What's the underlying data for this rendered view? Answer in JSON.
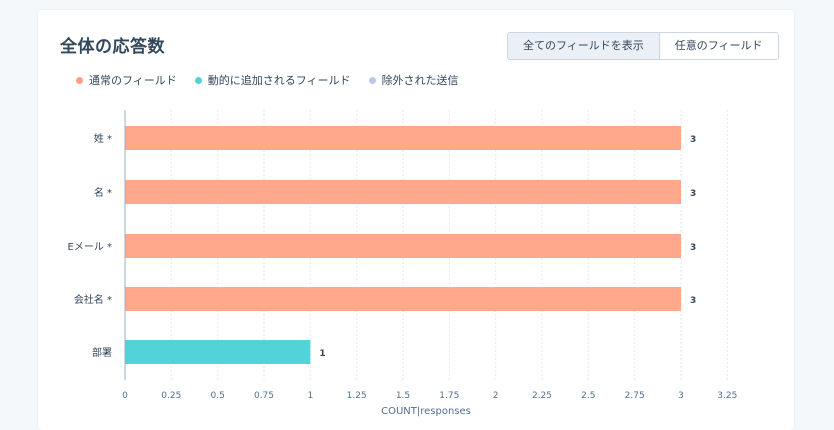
{
  "title": "全体の応答数",
  "toggle": {
    "all_label": "全てのフィールドを表示",
    "optional_label": "任意のフィールド"
  },
  "legend": [
    {
      "label": "通常のフィールド",
      "color": "#ff9f84"
    },
    {
      "label": "動的に追加されるフィールド",
      "color": "#51d3d9"
    },
    {
      "label": "除外された送信",
      "color": "#b8c9e6"
    }
  ],
  "chart_data": {
    "type": "bar",
    "orientation": "horizontal",
    "categories": [
      "姓 *",
      "名 *",
      "Eメール *",
      "会社名 *",
      "部署"
    ],
    "values": [
      3,
      3,
      3,
      3,
      1
    ],
    "bar_colors": [
      "#ffa88c",
      "#ffa88c",
      "#ffa88c",
      "#ffa88c",
      "#51d3d9"
    ],
    "xlabel": "COUNT|responses",
    "xlim": [
      0,
      3.25
    ],
    "xticks": [
      "0",
      "0.25",
      "0.5",
      "0.75",
      "1",
      "1.25",
      "1.5",
      "1.75",
      "2",
      "2.25",
      "2.5",
      "2.75",
      "3",
      "3.25"
    ],
    "grid": true
  }
}
